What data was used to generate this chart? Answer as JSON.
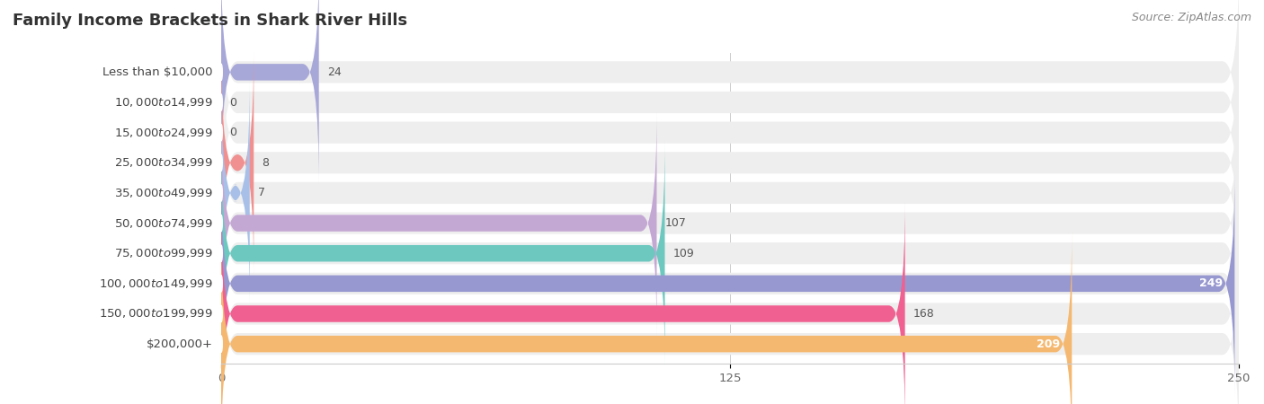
{
  "title": "Family Income Brackets in Shark River Hills",
  "source": "Source: ZipAtlas.com",
  "categories": [
    "Less than $10,000",
    "$10,000 to $14,999",
    "$15,000 to $24,999",
    "$25,000 to $34,999",
    "$35,000 to $49,999",
    "$50,000 to $74,999",
    "$75,000 to $99,999",
    "$100,000 to $149,999",
    "$150,000 to $199,999",
    "$200,000+"
  ],
  "values": [
    24,
    0,
    0,
    8,
    7,
    107,
    109,
    249,
    168,
    209
  ],
  "bar_colors": [
    "#a8a8d8",
    "#f4a0b5",
    "#f5c99a",
    "#f09090",
    "#a8c0e8",
    "#c4a8d4",
    "#6dc8c0",
    "#9898d0",
    "#f06090",
    "#f5b870"
  ],
  "bg_track_color": "#eeeeee",
  "xlim": [
    0,
    250
  ],
  "xticks": [
    0,
    125,
    250
  ],
  "background_color": "#ffffff",
  "title_fontsize": 13,
  "label_fontsize": 9.5,
  "value_fontsize": 9.0,
  "source_fontsize": 9
}
